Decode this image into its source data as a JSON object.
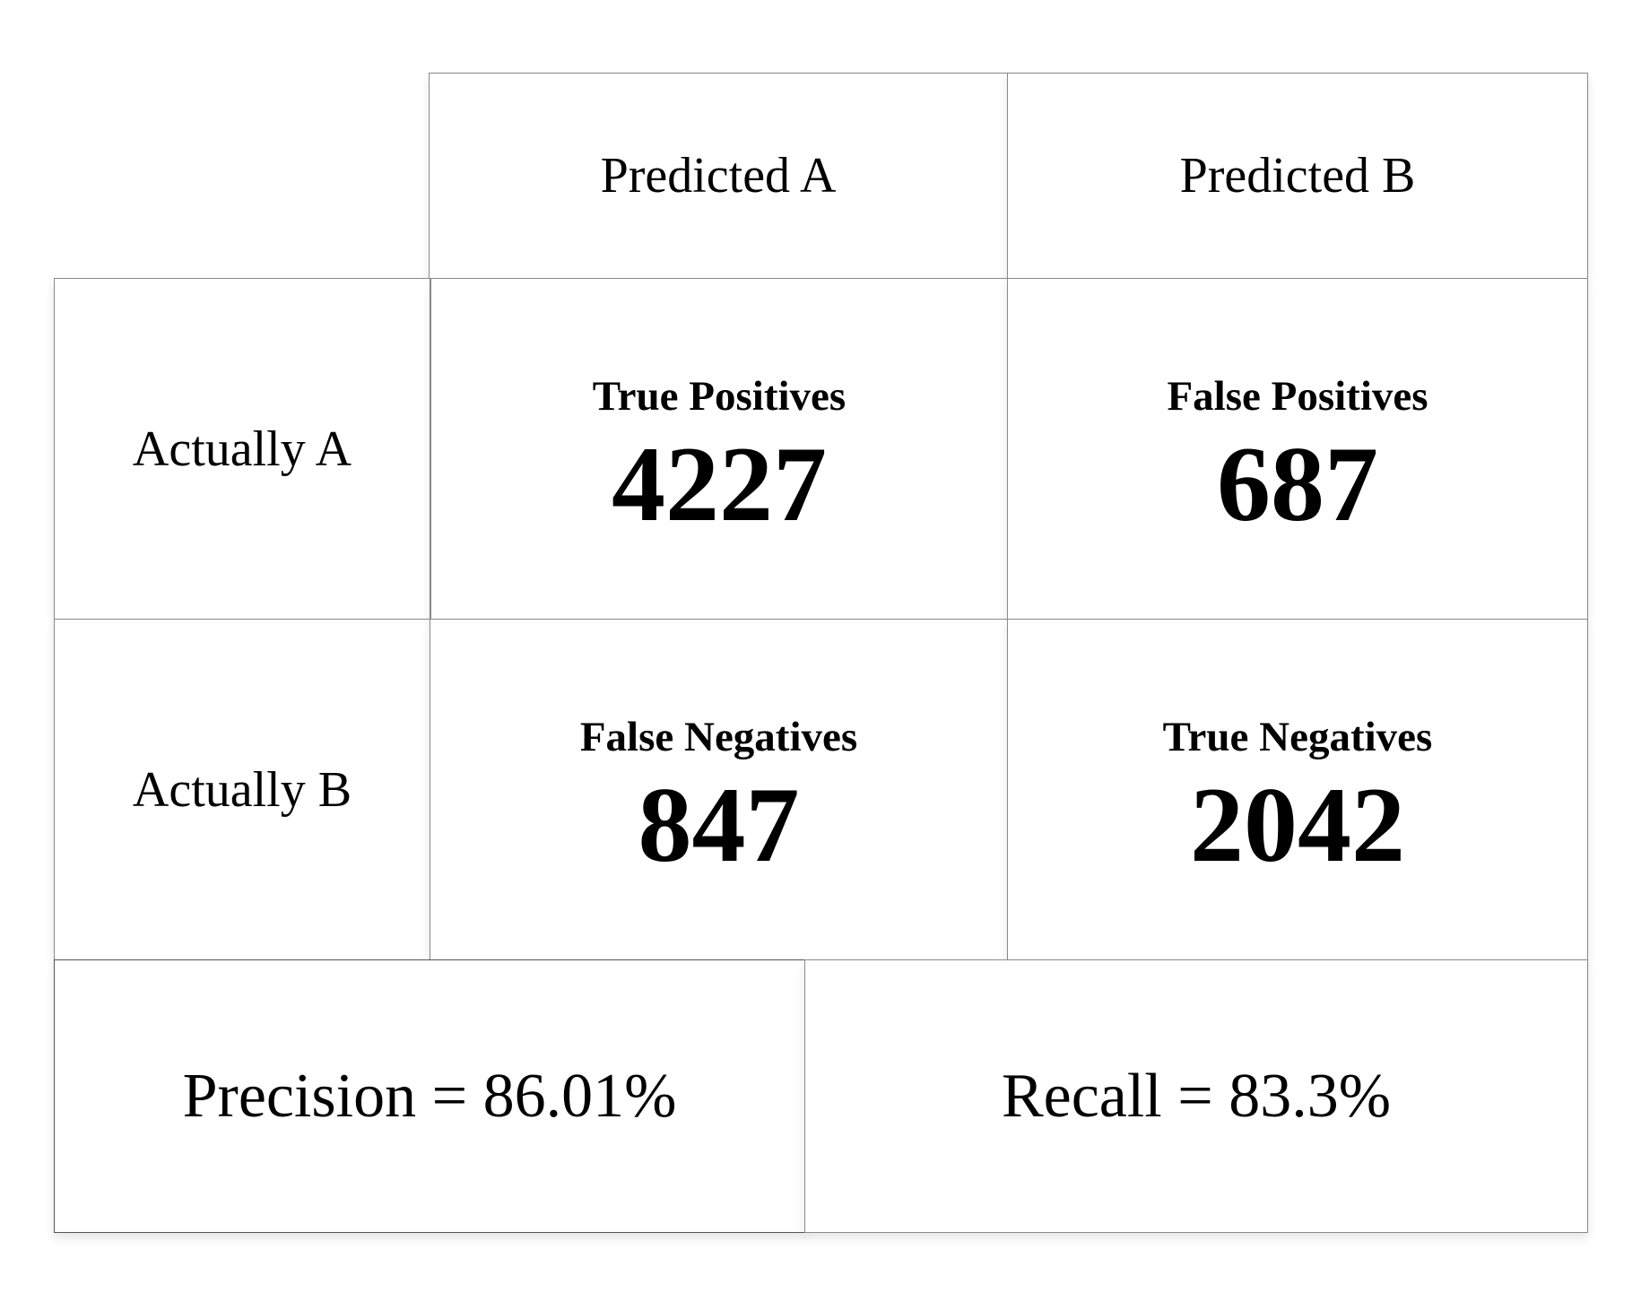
{
  "columns": {
    "predicted_a": "Predicted A",
    "predicted_b": "Predicted B"
  },
  "rows": {
    "actually_a": "Actually A",
    "actually_b": "Actually B"
  },
  "matrix": {
    "true_positives": {
      "label": "True Positives",
      "value": "4227"
    },
    "false_positives": {
      "label": "False Positives",
      "value": "687"
    },
    "false_negatives": {
      "label": "False Negatives",
      "value": "847"
    },
    "true_negatives": {
      "label": "True Negatives",
      "value": "2042"
    }
  },
  "summary": {
    "precision": "Precision = 86.01%",
    "recall": "Recall = 83.3%"
  },
  "colors": {
    "border": "#8a8a8a",
    "text": "#000000",
    "background": "#ffffff"
  }
}
